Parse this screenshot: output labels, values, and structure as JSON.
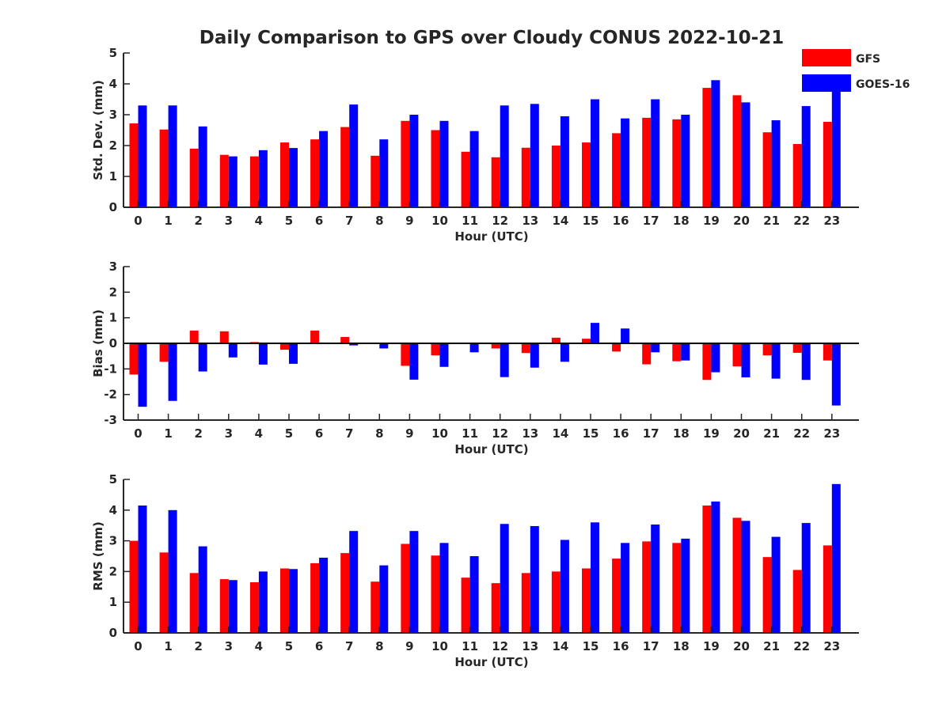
{
  "title": "Daily Comparison to GPS over Cloudy CONUS 2022-10-21",
  "legend": {
    "placement": "top-right, outside",
    "entries": [
      {
        "label": "GFS",
        "color": "#ff0000"
      },
      {
        "label": "GOES-16",
        "color": "#0000ff"
      }
    ]
  },
  "chart_data": [
    {
      "type": "bar",
      "xlabel": "Hour (UTC)",
      "ylabel": "Std. Dev. (mm)",
      "ylim": [
        0,
        5
      ],
      "yticks": [
        0,
        1,
        2,
        3,
        4,
        5
      ],
      "categories": [
        0,
        1,
        2,
        3,
        4,
        5,
        6,
        7,
        8,
        9,
        10,
        11,
        12,
        13,
        14,
        15,
        16,
        17,
        18,
        19,
        20,
        21,
        22,
        23
      ],
      "series": [
        {
          "name": "GFS",
          "color": "#ff0000",
          "values": [
            2.72,
            2.52,
            1.9,
            1.7,
            1.65,
            2.1,
            2.2,
            2.6,
            1.67,
            2.8,
            2.5,
            1.8,
            1.62,
            1.93,
            2.0,
            2.1,
            2.4,
            2.9,
            2.85,
            3.87,
            3.63,
            2.43,
            2.05,
            2.77
          ]
        },
        {
          "name": "GOES-16",
          "color": "#0000ff",
          "values": [
            3.3,
            3.3,
            2.62,
            1.65,
            1.85,
            1.92,
            2.47,
            3.33,
            2.2,
            3.0,
            2.8,
            2.47,
            3.3,
            3.35,
            2.95,
            3.5,
            2.88,
            3.5,
            3.0,
            4.12,
            3.4,
            2.82,
            3.28,
            3.9
          ]
        }
      ]
    },
    {
      "type": "bar",
      "xlabel": "Hour (UTC)",
      "ylabel": "Bias (mm)",
      "ylim": [
        -3,
        3
      ],
      "yticks": [
        -3,
        -2,
        -1,
        0,
        1,
        2,
        3
      ],
      "zero_line": true,
      "categories": [
        0,
        1,
        2,
        3,
        4,
        5,
        6,
        7,
        8,
        9,
        10,
        11,
        12,
        13,
        14,
        15,
        16,
        17,
        18,
        19,
        20,
        21,
        22,
        23
      ],
      "series": [
        {
          "name": "GFS",
          "color": "#ff0000",
          "values": [
            -1.22,
            -0.72,
            0.5,
            0.47,
            0.05,
            -0.25,
            0.5,
            0.25,
            0.0,
            -0.88,
            -0.47,
            0.03,
            -0.2,
            -0.38,
            0.22,
            0.18,
            -0.32,
            -0.82,
            -0.7,
            -1.43,
            -0.9,
            -0.47,
            -0.37,
            -0.67
          ]
        },
        {
          "name": "GOES-16",
          "color": "#0000ff",
          "values": [
            -2.48,
            -2.25,
            -1.1,
            -0.55,
            -0.83,
            -0.8,
            0.03,
            -0.08,
            -0.2,
            -1.42,
            -0.92,
            -0.35,
            -1.32,
            -0.95,
            -0.72,
            0.8,
            0.58,
            -0.35,
            -0.67,
            -1.13,
            -1.33,
            -1.38,
            -1.43,
            -2.43
          ]
        }
      ]
    },
    {
      "type": "bar",
      "xlabel": "Hour (UTC)",
      "ylabel": "RMS (mm)",
      "ylim": [
        0,
        5
      ],
      "yticks": [
        0,
        1,
        2,
        3,
        4,
        5
      ],
      "categories": [
        0,
        1,
        2,
        3,
        4,
        5,
        6,
        7,
        8,
        9,
        10,
        11,
        12,
        13,
        14,
        15,
        16,
        17,
        18,
        19,
        20,
        21,
        22,
        23
      ],
      "series": [
        {
          "name": "GFS",
          "color": "#ff0000",
          "values": [
            3.0,
            2.62,
            1.95,
            1.75,
            1.65,
            2.1,
            2.27,
            2.6,
            1.67,
            2.9,
            2.52,
            1.8,
            1.62,
            1.95,
            2.0,
            2.1,
            2.42,
            2.98,
            2.93,
            4.15,
            3.75,
            2.47,
            2.05,
            2.85
          ]
        },
        {
          "name": "GOES-16",
          "color": "#0000ff",
          "values": [
            4.15,
            4.0,
            2.82,
            1.72,
            2.0,
            2.08,
            2.45,
            3.32,
            2.2,
            3.32,
            2.93,
            2.5,
            3.55,
            3.48,
            3.03,
            3.6,
            2.93,
            3.53,
            3.07,
            4.28,
            3.65,
            3.13,
            3.58,
            4.85
          ]
        }
      ]
    }
  ]
}
